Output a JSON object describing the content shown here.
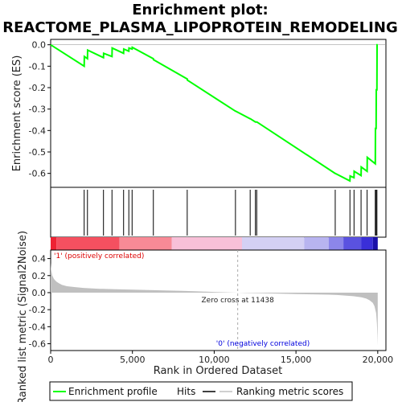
{
  "chart_data": {
    "type": "line",
    "title_lines": [
      "Enrichment plot:",
      "REACTOME_PLASMA_LIPOPROTEIN_REMODELING"
    ],
    "xlabel": "Rank in Ordered Dataset",
    "ylabel_top": "Enrichment score (ES)",
    "ylabel_bottom": "Ranked list metric (Signal2Noise)",
    "xlim": [
      0,
      20500
    ],
    "x_ticks": [
      0,
      5000,
      10000,
      15000,
      20000
    ],
    "x_tick_labels": [
      "0",
      "5,000",
      "10,000",
      "15,000",
      "20,000"
    ],
    "es_ylim": [
      -0.665,
      0.025
    ],
    "es_ticks": [
      0.0,
      -0.1,
      -0.2,
      -0.3,
      -0.4,
      -0.5,
      -0.6
    ],
    "es_tick_labels": [
      "0.0",
      "-0.1",
      "-0.2",
      "-0.3",
      "-0.4",
      "-0.5",
      "-0.6"
    ],
    "metric_ylim": [
      -0.68,
      0.5
    ],
    "metric_ticks": [
      0.4,
      0.2,
      0.0,
      -0.2,
      -0.4,
      -0.6
    ],
    "metric_tick_labels": [
      "0.4",
      "0.2",
      "0.0",
      "-0.2",
      "-0.4",
      "-0.6"
    ],
    "enrichment_profile": {
      "name": "Enrichment profile",
      "color": "#00ff00",
      "x": [
        0,
        2050,
        2060,
        2250,
        2260,
        3230,
        3240,
        3750,
        3760,
        4460,
        4470,
        4780,
        4790,
        4980,
        4990,
        6280,
        6290,
        8350,
        8360,
        11300,
        11310,
        12200,
        12210,
        12520,
        12530,
        12600,
        12610,
        17400,
        17410,
        18300,
        18310,
        18550,
        18560,
        18980,
        18990,
        19350,
        19360,
        19850,
        19860,
        19900,
        19910,
        19950,
        19960,
        20000
      ],
      "y": [
        0.0,
        -0.1,
        -0.055,
        -0.065,
        -0.025,
        -0.06,
        -0.04,
        -0.055,
        -0.015,
        -0.04,
        -0.02,
        -0.03,
        -0.015,
        -0.02,
        -0.012,
        -0.065,
        -0.07,
        -0.16,
        -0.165,
        -0.31,
        -0.31,
        -0.345,
        -0.345,
        -0.36,
        -0.36,
        -0.36,
        -0.36,
        -0.6,
        -0.6,
        -0.635,
        -0.612,
        -0.62,
        -0.59,
        -0.61,
        -0.57,
        -0.59,
        -0.525,
        -0.555,
        -0.39,
        -0.39,
        -0.21,
        -0.21,
        0.0,
        0.0
      ]
    },
    "hits": {
      "name": "Hits",
      "color": "#000000",
      "x": [
        2050,
        2250,
        3230,
        3750,
        4460,
        4780,
        4980,
        6280,
        8350,
        11300,
        12200,
        12520,
        12600,
        17400,
        18300,
        18550,
        18980,
        19350,
        19850,
        19900,
        19950
      ]
    },
    "ranking_metric": {
      "name": "Ranking metric scores",
      "color": "#c0c0c0",
      "x": [
        0,
        30,
        100,
        200,
        350,
        500,
        700,
        1000,
        1500,
        2000,
        3000,
        4000,
        5000,
        6000,
        7000,
        8000,
        9000,
        10000,
        11438,
        12000,
        13000,
        14000,
        15000,
        16000,
        17000,
        17500,
        18000,
        18500,
        19000,
        19300,
        19500,
        19700,
        19800,
        19900,
        19950,
        19980,
        20000
      ],
      "y": [
        0.35,
        0.27,
        0.2,
        0.16,
        0.13,
        0.11,
        0.09,
        0.075,
        0.065,
        0.055,
        0.045,
        0.04,
        0.035,
        0.03,
        0.025,
        0.02,
        0.015,
        0.008,
        0.0,
        -0.004,
        -0.008,
        -0.012,
        -0.016,
        -0.02,
        -0.024,
        -0.028,
        -0.034,
        -0.042,
        -0.055,
        -0.07,
        -0.09,
        -0.12,
        -0.16,
        -0.24,
        -0.36,
        -0.5,
        -0.62
      ]
    },
    "zero_cross": {
      "x": 11438,
      "label": "Zero cross at 11438"
    },
    "positive_label": "'1' (positively correlated)",
    "negative_label": "'0' (negatively correlated)",
    "positive_color": "#dd0000",
    "negative_color": "#0000dd",
    "heatmap_bar": [
      {
        "from": 0,
        "to": 350,
        "color": "#ee2233"
      },
      {
        "from": 350,
        "to": 4200,
        "color": "#f55060"
      },
      {
        "from": 4200,
        "to": 7400,
        "color": "#f88a96"
      },
      {
        "from": 7400,
        "to": 11700,
        "color": "#f8c0d8"
      },
      {
        "from": 11700,
        "to": 15500,
        "color": "#d4d0f4"
      },
      {
        "from": 15500,
        "to": 17000,
        "color": "#b8b4f0"
      },
      {
        "from": 17000,
        "to": 17900,
        "color": "#8c86ea"
      },
      {
        "from": 17900,
        "to": 19000,
        "color": "#5a52e0"
      },
      {
        "from": 19000,
        "to": 19700,
        "color": "#3a2fd8"
      },
      {
        "from": 19700,
        "to": 20000,
        "color": "#1a10a8"
      }
    ],
    "legend": [
      "Enrichment profile",
      "Hits",
      "Ranking metric scores"
    ]
  }
}
